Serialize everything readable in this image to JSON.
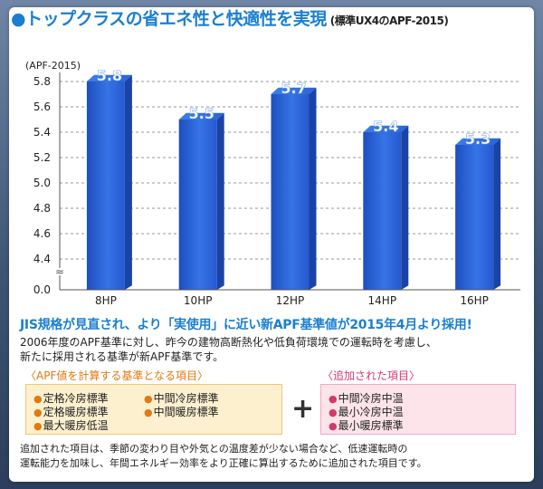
{
  "title": {
    "bullet": "●",
    "main": "トップクラスの省エネ性と快適性を実現",
    "sub": "(標準UX4のAPF-2015)"
  },
  "chart_data": {
    "type": "bar",
    "ylabel": "(APF-2015)",
    "categories": [
      "8HP",
      "10HP",
      "12HP",
      "14HP",
      "16HP"
    ],
    "values": [
      5.8,
      5.5,
      5.7,
      5.4,
      5.3
    ],
    "value_labels": [
      "5.8",
      "5.5",
      "5.7",
      "5.4",
      "5.3"
    ],
    "y_ticks": [
      "5.8",
      "5.6",
      "5.4",
      "5.2",
      "5.0",
      "4.8",
      "4.6",
      "4.4",
      "0.0"
    ],
    "ylim": [
      4.3,
      5.8
    ],
    "axis_break": "≈",
    "bar_color": "#2a63d8"
  },
  "headline": "JIS規格が見直され、より「実使用」に近い新APF基準値が2015年4月より採用!",
  "description": {
    "line1": "2006年度のAPF基準に対し、昨今の建物高断熱化や低負荷環境での運転時を考慮し、",
    "line2": "新たに採用される基準が新APF基準です。"
  },
  "left_box": {
    "caption": "〈APF値を計算する基準となる項目〉",
    "items": [
      "定格冷房標準",
      "中間冷房標準",
      "定格暖房標準",
      "中間暖房標準",
      "最大暖房低温"
    ]
  },
  "plus": "+",
  "right_box": {
    "caption": "〈追加された項目〉",
    "items": [
      "中間冷房中温",
      "最小冷房中温",
      "最小暖房標準"
    ]
  },
  "bullet_char": "●",
  "note": {
    "line1": "追加された項目は、季節の変わり目や外気との温度差が少ない場合など、低速運転時の",
    "line2": "運転能力を加味し、年間エネルギー効率をより正確に算出するために追加された項目です。"
  }
}
